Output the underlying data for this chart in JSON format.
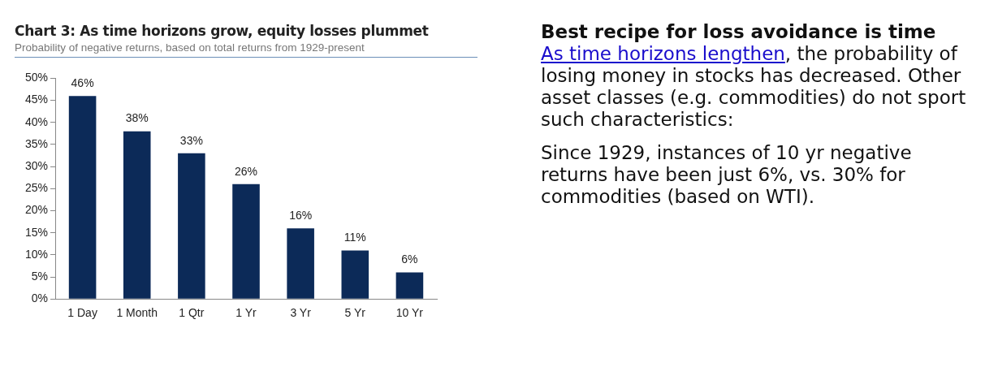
{
  "chart_data": [
    {
      "type": "bar",
      "title": "Chart 3: As time horizons grow, equity losses plummet",
      "subtitle": "Probability of negative returns, based on total returns from 1929-present",
      "categories": [
        "1 Day",
        "1 Month",
        "1 Qtr",
        "1 Yr",
        "3 Yr",
        "5 Yr",
        "10 Yr"
      ],
      "values": [
        46,
        38,
        33,
        26,
        16,
        11,
        6
      ],
      "color": "#0c2a58",
      "ylim": [
        0,
        50
      ],
      "yticks": [
        {
          "value": 0,
          "label": "0%"
        },
        {
          "value": 5,
          "label": "5%"
        },
        {
          "value": 10,
          "label": "10%"
        },
        {
          "value": 15,
          "label": "15%"
        },
        {
          "value": 20,
          "label": "20%"
        },
        {
          "value": 25,
          "label": "25%"
        },
        {
          "value": 30,
          "label": "30%"
        },
        {
          "value": 35,
          "label": "35%"
        },
        {
          "value": 40,
          "label": "40%"
        },
        {
          "value": 45,
          "label": "45%"
        },
        {
          "value": 50,
          "label": "50%"
        }
      ],
      "value_labels": [
        "46%",
        "38%",
        "33%",
        "26%",
        "16%",
        "11%",
        "6%"
      ],
      "grid": false,
      "legend": false
    },
    {
      "type": "other",
      "title": "Best recipe for loss avoidance is time",
      "annotations": [
        "As time horizons lengthen",
        ", the probability of losing money in stocks has decreased. Other asset classes (e.g. commodities) do not sport such characteristics:",
        "Since 1929, instances of 10 yr negative returns have been just 6%, vs. 30% for commodities (based on WTI)."
      ]
    }
  ]
}
